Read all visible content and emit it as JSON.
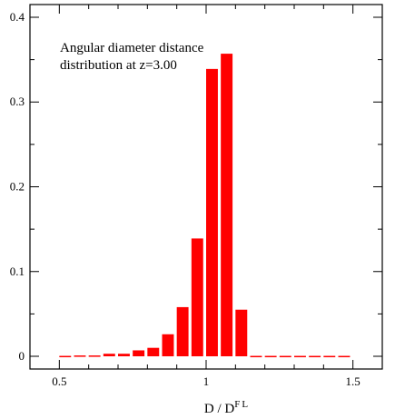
{
  "chart_data": {
    "type": "bar",
    "annotation": [
      "Angular diameter distance",
      "distribution at z=3.00"
    ],
    "xlabel": {
      "base": "D / D",
      "superscript": "FL"
    },
    "xlim": [
      0.4,
      1.6
    ],
    "ylim": [
      -0.015,
      0.415
    ],
    "x_ticks": [
      0.5,
      1,
      1.5
    ],
    "x_tick_labels": [
      "0.5",
      "1",
      "1.5"
    ],
    "y_ticks": [
      0,
      0.1,
      0.2,
      0.3,
      0.4
    ],
    "y_tick_labels": [
      "0",
      "0.1",
      "0.2",
      "0.3",
      "0.4"
    ],
    "bar_width": 0.04,
    "bar_color": "#ff0000",
    "x": [
      0.52,
      0.57,
      0.62,
      0.67,
      0.72,
      0.77,
      0.82,
      0.87,
      0.92,
      0.97,
      1.02,
      1.07,
      1.12,
      1.17,
      1.22,
      1.27,
      1.32,
      1.37,
      1.42,
      1.47
    ],
    "values": [
      0.0005,
      0.001,
      0.001,
      0.003,
      0.003,
      0.007,
      0.01,
      0.026,
      0.058,
      0.139,
      0.339,
      0.357,
      0.055,
      0.0005,
      0.0005,
      0.0005,
      0.0005,
      0.0005,
      0.0005,
      0.0005
    ]
  }
}
